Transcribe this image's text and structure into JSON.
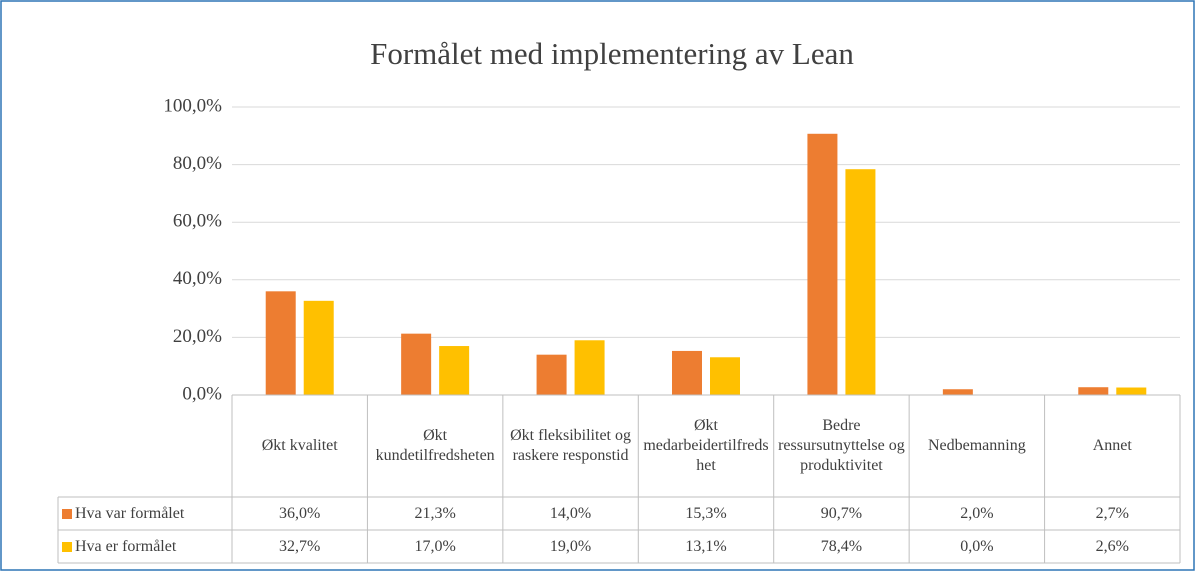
{
  "chart_data": {
    "type": "bar",
    "title": "Formålet med implementering av Lean",
    "categories": [
      "Økt kvalitet",
      "Økt kundetilfredsheten",
      "Økt fleksibilitet og raskere responstid",
      "Økt medarbeidertilfredshet",
      "Bedre ressursutnyttelse og produktivitet",
      "Nedbemanning",
      "Annet"
    ],
    "series": [
      {
        "name": "Hva var formålet",
        "color": "#ed7d31",
        "values": [
          36.0,
          21.3,
          14.0,
          15.3,
          90.7,
          2.0,
          2.7
        ],
        "value_labels": [
          "36,0%",
          "21,3%",
          "14,0%",
          "15,3%",
          "90,7%",
          "2,0%",
          "2,7%"
        ]
      },
      {
        "name": "Hva er formålet",
        "color": "#ffc000",
        "values": [
          32.7,
          17.0,
          19.0,
          13.1,
          78.4,
          0.0,
          2.6
        ],
        "value_labels": [
          "32,7%",
          "17,0%",
          "19,0%",
          "13,1%",
          "78,4%",
          "0,0%",
          "2,6%"
        ]
      }
    ],
    "ylim": [
      0,
      100
    ],
    "yticks": [
      {
        "value": 0,
        "label": "0,0%"
      },
      {
        "value": 20,
        "label": "20,0%"
      },
      {
        "value": 40,
        "label": "40,0%"
      },
      {
        "value": 60,
        "label": "60,0%"
      },
      {
        "value": 80,
        "label": "80,0%"
      },
      {
        "value": 100,
        "label": "100,0%"
      }
    ],
    "grid": true,
    "data_table": true
  }
}
